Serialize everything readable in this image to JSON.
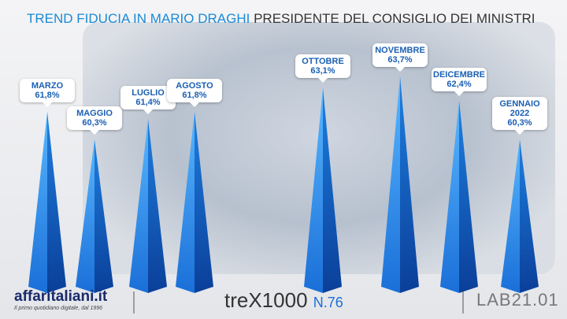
{
  "chart_data": {
    "type": "bar",
    "title": "TREND FIDUCIA IN MARIO DRAGHI",
    "subtitle": "PRESIDENTE DEL CONSIGLIO DEI MINISTRI",
    "categories": [
      "MARZO",
      "MAGGIO",
      "LUGLIO",
      "AGOSTO",
      "OTTOBRE",
      "NOVEMBRE",
      "DEICEMBRE",
      "GENNAIO 2022"
    ],
    "values": [
      61.8,
      60.3,
      61.4,
      61.8,
      63.1,
      63.7,
      62.4,
      60.3
    ],
    "value_labels": [
      "61,8%",
      "60,3%",
      "61,4%",
      "61,8%",
      "63,1%",
      "63,7%",
      "62,4%",
      "60,3%"
    ],
    "color": "#1f7fe0",
    "ylim": [
      52,
      64
    ]
  },
  "footer": {
    "brand": "affaritaliani.it",
    "tagline": "Il primo quotidiano digitale, dal 1996",
    "trex": "treX1000",
    "issue": "N.76",
    "lab": "LAB21.01"
  }
}
